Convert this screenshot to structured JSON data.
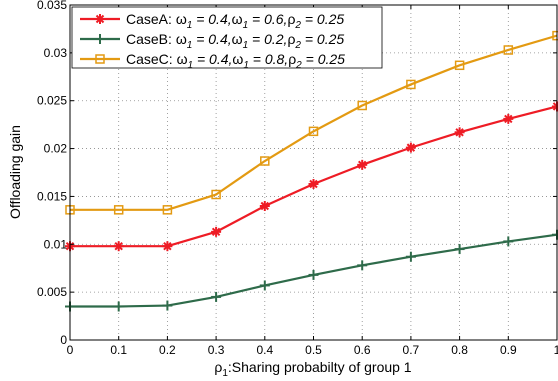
{
  "chart_data": {
    "type": "line",
    "xlabel": {
      "prefix": "ρ",
      "sub": "1",
      "rest": ":Sharing probabilty of group 1"
    },
    "ylabel": "Offloading gain",
    "xlim": [
      0,
      1
    ],
    "ylim": [
      0,
      0.035
    ],
    "grid": true,
    "legend_position": "top-left",
    "x": [
      0,
      0.1,
      0.2,
      0.3,
      0.4,
      0.5,
      0.6,
      0.7,
      0.8,
      0.9,
      1.0
    ],
    "x_ticks": [
      "0",
      "0.1",
      "0.2",
      "0.3",
      "0.4",
      "0.5",
      "0.6",
      "0.7",
      "0.8",
      "0.9",
      "1"
    ],
    "y_ticks": [
      "0",
      "0.005",
      "0.01",
      "0.015",
      "0.02",
      "0.025",
      "0.03",
      "0.035"
    ],
    "series": [
      {
        "name": "CaseA: ω1 = 0.4,ω1 = 0.6,ρ2 = 0.25",
        "label_parts": {
          "case": "CaseA: ",
          "w": "ω",
          "s1": "1",
          "v1": " = 0.4,",
          "s2": "1",
          "v2": " = 0.6,",
          "r": "ρ",
          "s3": "2",
          "v3": " = 0.25"
        },
        "color": "#ee1c25",
        "marker": "asterisk",
        "values": [
          0.0098,
          0.0098,
          0.0098,
          0.0113,
          0.014,
          0.0163,
          0.0183,
          0.0201,
          0.0217,
          0.0231,
          0.0244
        ]
      },
      {
        "name": "CaseB: ω1 = 0.4,ω1 = 0.2,ρ2 = 0.25",
        "label_parts": {
          "case": "CaseB: ",
          "w": "ω",
          "s1": "1",
          "v1": " = 0.4,",
          "s2": "1",
          "v2": " = 0.2,",
          "r": "ρ",
          "s3": "2",
          "v3": " = 0.25"
        },
        "color": "#2e6b4a",
        "marker": "plus",
        "values": [
          0.0035,
          0.0035,
          0.0036,
          0.0045,
          0.0057,
          0.0068,
          0.0078,
          0.0087,
          0.0095,
          0.0103,
          0.011
        ]
      },
      {
        "name": "CaseC: ω1 = 0.4,ω1 = 0.8,ρ2 = 0.25",
        "label_parts": {
          "case": "CaseC: ",
          "w": "ω",
          "s1": "1",
          "v1": " = 0.4,",
          "s2": "1",
          "v2": " = 0.8,",
          "r": "ρ",
          "s3": "2",
          "v3": " = 0.25"
        },
        "color": "#e39a12",
        "marker": "square",
        "values": [
          0.0136,
          0.0136,
          0.0136,
          0.0152,
          0.0187,
          0.0218,
          0.0245,
          0.0267,
          0.0287,
          0.0303,
          0.0318
        ]
      }
    ]
  }
}
